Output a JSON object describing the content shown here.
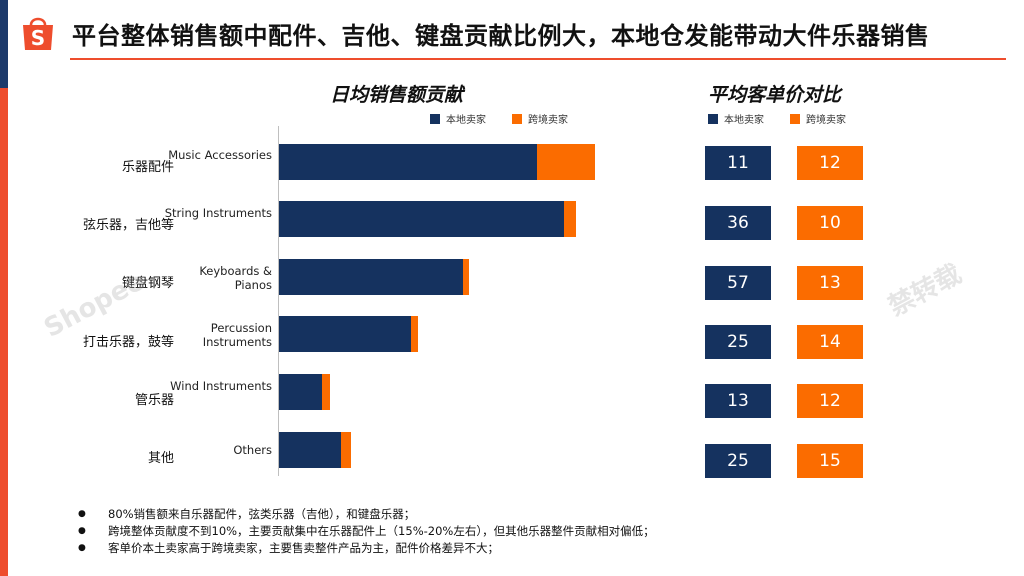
{
  "header": {
    "logo_letter": "S",
    "title": "平台整体销售额中配件、吉他、键盘贡献比例大，本地仓发能带动大件乐器销售"
  },
  "colors": {
    "local": "#15325f",
    "cross": "#fb6c00",
    "brand": "#ee4d2d",
    "navy": "#1d3a6b"
  },
  "chart_data": [
    {
      "type": "bar",
      "orientation": "horizontal",
      "stacked": true,
      "title": "日均销售额贡献",
      "categories_cn": [
        "乐器配件",
        "弦乐器，吉他等",
        "键盘钢琴",
        "打击乐器，鼓等",
        "管乐器",
        "其他"
      ],
      "categories": [
        "Music Accessories",
        "String Instruments",
        "Keyboards & Pianos",
        "Percussion Instruments",
        "Wind Instruments",
        "Others"
      ],
      "series": [
        {
          "name": "本地卖家",
          "values": [
            258,
            285,
            184,
            132,
            43,
            62
          ]
        },
        {
          "name": "跨境卖家",
          "values": [
            58,
            12,
            6,
            7,
            8,
            10
          ]
        }
      ],
      "xlim": [
        0,
        330
      ],
      "legend": "top-right",
      "grid": false
    },
    {
      "type": "table",
      "title": "平均客单价对比",
      "columns": [
        "本地卖家",
        "跨境卖家"
      ],
      "rows": [
        {
          "category": "Music Accessories",
          "local": "11",
          "cross": "12"
        },
        {
          "category": "String Instruments",
          "local": "36",
          "cross": "10"
        },
        {
          "category": "Keyboards & Pianos",
          "local": "57",
          "cross": "13"
        },
        {
          "category": "Percussion Instruments",
          "local": "25",
          "cross": "14"
        },
        {
          "category": "Wind Instruments",
          "local": "13",
          "cross": "12"
        },
        {
          "category": "Others",
          "local": "25",
          "cross": "15"
        }
      ]
    }
  ],
  "bullets": [
    "80%销售额来自乐器配件，弦类乐器（吉他），和键盘乐器；",
    "跨境整体贡献度不到10%，主要贡献集中在乐器配件上（15%-20%左右），但其他乐器整件贡献相对偏低；",
    "客单价本土卖家高于跨境卖家，主要售卖整件产品为主，配件价格差异不大；"
  ]
}
